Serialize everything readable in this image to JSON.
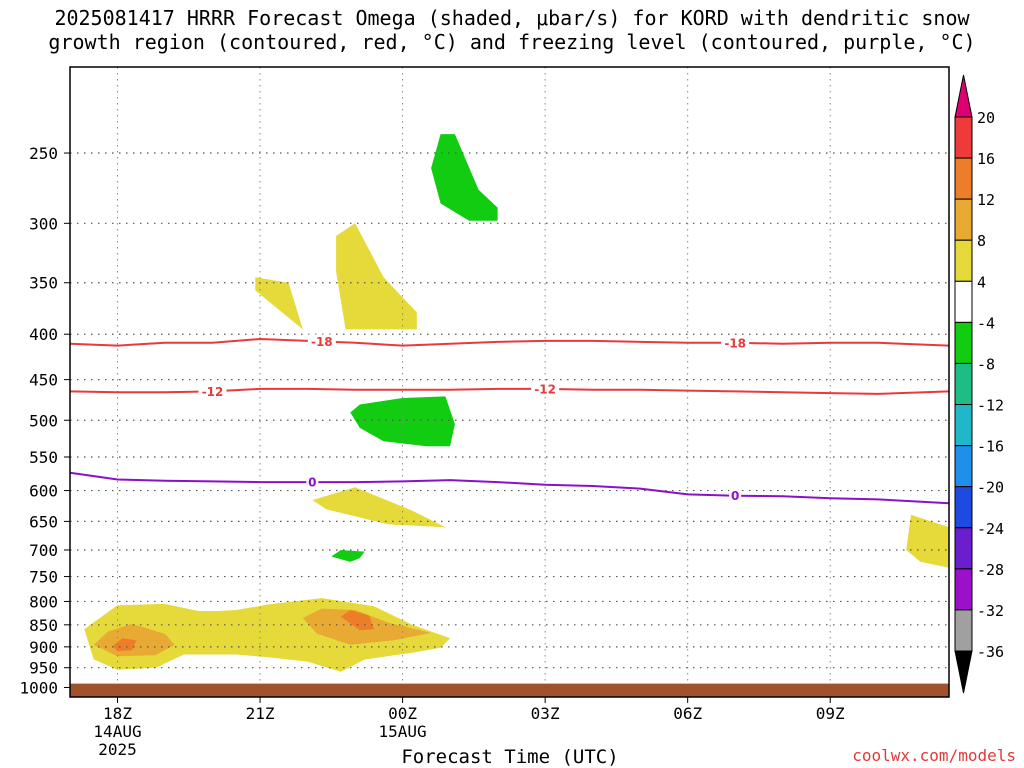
{
  "title_lines": [
    "2025081417 HRRR Forecast Omega (shaded, μbar/s) for KORD with dendritic snow",
    "growth region (contoured, red, °C) and freezing level (contoured, purple, °C)"
  ],
  "credit": "coolwx.com/models",
  "chart_data": {
    "type": "contour",
    "title": "2025081417 HRRR Forecast Omega (shaded, μbar/s) for KORD with dendritic snow growth region (contoured, red, °C) and freezing level (contoured, purple, °C)",
    "xlabel": "Forecast Time (UTC)",
    "ylabel": "",
    "y_scale": "log-pressure (hPa), inverted",
    "ylim": [
      1025,
      200
    ],
    "y_ticks": [
      250,
      300,
      350,
      400,
      450,
      500,
      550,
      600,
      650,
      700,
      750,
      800,
      850,
      900,
      950,
      1000
    ],
    "xlim": [
      17,
      35.5
    ],
    "x_ticks": [
      {
        "hour": 18,
        "label": "18Z",
        "sub1": "14AUG",
        "sub2": "2025"
      },
      {
        "hour": 21,
        "label": "21Z",
        "sub1": "",
        "sub2": ""
      },
      {
        "hour": 24,
        "label": "00Z",
        "sub1": "15AUG",
        "sub2": ""
      },
      {
        "hour": 27,
        "label": "03Z",
        "sub1": "",
        "sub2": ""
      },
      {
        "hour": 30,
        "label": "06Z",
        "sub1": "",
        "sub2": ""
      },
      {
        "hour": 33,
        "label": "09Z",
        "sub1": "",
        "sub2": ""
      }
    ],
    "grid": true,
    "ground_below_hpa": 990,
    "colorbar": {
      "placement": "right",
      "labels": [
        "20",
        "16",
        "12",
        "8",
        "4",
        "-4",
        "-8",
        "-12",
        "-16",
        "-20",
        "-24",
        "-28",
        "-32",
        "-36"
      ],
      "colors": [
        "#dd0070",
        "#ee3a3a",
        "#ee7d2a",
        "#e8aa33",
        "#e6d93a",
        "#ffffff",
        "#11cc11",
        "#1dbd85",
        "#1eb8c8",
        "#1e8fea",
        "#1d4ae0",
        "#6a1ecd",
        "#9b10c8",
        "#a0a0a0",
        "#000000"
      ]
    },
    "contours": [
      {
        "kind": "dendritic",
        "label": "-18",
        "color": "#e83a3a",
        "x": [
          17,
          18,
          19,
          20,
          21,
          22,
          23,
          24,
          25,
          26,
          27,
          28,
          29,
          30,
          31,
          32,
          33,
          34,
          35.5
        ],
        "y": [
          410,
          412,
          409,
          409,
          405,
          407,
          409,
          412,
          410,
          408,
          407,
          407,
          408,
          409,
          409,
          410,
          409,
          409,
          412
        ],
        "label_positions": [
          22.3,
          31
        ]
      },
      {
        "kind": "dendritic",
        "label": "-12",
        "color": "#e83a3a",
        "x": [
          17,
          18,
          19,
          20,
          21,
          22,
          23,
          24,
          25,
          26,
          27,
          28,
          29,
          30,
          31,
          32,
          33,
          34,
          35.5
        ],
        "y": [
          464,
          465,
          465,
          464,
          461,
          461,
          462,
          462,
          462,
          461,
          461,
          462,
          462,
          463,
          464,
          465,
          466,
          467,
          464
        ],
        "label_positions": [
          20,
          27
        ]
      },
      {
        "kind": "freezing",
        "label": "0",
        "color": "#8c10c8",
        "x": [
          17,
          18,
          19,
          20,
          21,
          22,
          23,
          24,
          25,
          26,
          27,
          28,
          29,
          30,
          31,
          32,
          33,
          34,
          35.5
        ],
        "y": [
          573,
          583,
          585,
          586,
          587,
          587,
          587,
          586,
          584,
          587,
          591,
          593,
          597,
          606,
          608,
          609,
          612,
          614,
          620
        ],
        "label_positions": [
          22.1,
          31
        ]
      }
    ],
    "shaded_regions": [
      {
        "level": "4 to 8",
        "color": "#e6d93a",
        "points": [
          [
            20.9,
            345
          ],
          [
            21.6,
            350
          ],
          [
            21.9,
            395
          ],
          [
            20.9,
            357
          ]
        ]
      },
      {
        "level": "4 to 8",
        "color": "#e6d93a",
        "points": [
          [
            22.6,
            310
          ],
          [
            23,
            300
          ],
          [
            23.6,
            345
          ],
          [
            24.3,
            378
          ],
          [
            24.3,
            395
          ],
          [
            22.8,
            395
          ],
          [
            22.6,
            340
          ]
        ]
      },
      {
        "level": "4 to 8",
        "color": "#e6d93a",
        "points": [
          [
            22.1,
            615
          ],
          [
            23,
            595
          ],
          [
            24.2,
            632
          ],
          [
            24.9,
            660
          ],
          [
            23.7,
            655
          ],
          [
            22.4,
            630
          ]
        ]
      },
      {
        "level": "4 to 8",
        "color": "#e6d93a",
        "points": [
          [
            34.7,
            639
          ],
          [
            35.5,
            660
          ],
          [
            35.5,
            733
          ],
          [
            34.9,
            722
          ],
          [
            34.6,
            700
          ]
        ]
      },
      {
        "level": "4 to 8",
        "color": "#e6d93a",
        "points": [
          [
            17.3,
            860
          ],
          [
            18,
            808
          ],
          [
            19,
            805
          ],
          [
            19.7,
            820
          ],
          [
            20.1,
            820
          ],
          [
            20.5,
            818
          ],
          [
            21.2,
            806
          ],
          [
            22.3,
            793
          ],
          [
            23.4,
            810
          ],
          [
            24.2,
            850
          ],
          [
            25,
            880
          ],
          [
            24.8,
            902
          ],
          [
            24.2,
            914
          ],
          [
            23.2,
            930
          ],
          [
            22.7,
            960
          ],
          [
            22,
            935
          ],
          [
            21.2,
            925
          ],
          [
            20.5,
            918
          ],
          [
            19.4,
            918
          ],
          [
            18.8,
            950
          ],
          [
            18,
            955
          ],
          [
            17.5,
            930
          ]
        ]
      },
      {
        "level": "8 to 12",
        "color": "#e8aa33",
        "points": [
          [
            17.5,
            895
          ],
          [
            17.8,
            865
          ],
          [
            18.3,
            848
          ],
          [
            19,
            870
          ],
          [
            19.2,
            895
          ],
          [
            18.8,
            920
          ],
          [
            18,
            922
          ]
        ]
      },
      {
        "level": "8 to 12",
        "color": "#e8aa33",
        "points": [
          [
            21.9,
            835
          ],
          [
            22.3,
            815
          ],
          [
            23,
            818
          ],
          [
            23.7,
            845
          ],
          [
            24.6,
            868
          ],
          [
            23.8,
            885
          ],
          [
            22.9,
            895
          ],
          [
            22.2,
            870
          ]
        ]
      },
      {
        "level": "12 to 16",
        "color": "#ee7d2a",
        "points": [
          [
            17.9,
            898
          ],
          [
            18.1,
            880
          ],
          [
            18.4,
            885
          ],
          [
            18.3,
            908
          ],
          [
            18,
            910
          ]
        ]
      },
      {
        "level": "12 to 16",
        "color": "#ee7d2a",
        "points": [
          [
            22.7,
            832
          ],
          [
            22.9,
            818
          ],
          [
            23.3,
            830
          ],
          [
            23.4,
            860
          ],
          [
            23.1,
            862
          ]
        ]
      },
      {
        "level": "-4 to -8",
        "color": "#11cc11",
        "points": [
          [
            24.8,
            238
          ],
          [
            25.1,
            238
          ],
          [
            25.6,
            275
          ],
          [
            26,
            288
          ],
          [
            26,
            298
          ],
          [
            25.4,
            298
          ],
          [
            24.8,
            285
          ],
          [
            24.6,
            260
          ]
        ]
      },
      {
        "level": "-4 to -8",
        "color": "#11cc11",
        "points": [
          [
            23.1,
            480
          ],
          [
            24,
            472
          ],
          [
            24.9,
            470
          ],
          [
            25.1,
            505
          ],
          [
            25,
            535
          ],
          [
            24.5,
            535
          ],
          [
            23.6,
            528
          ],
          [
            23.1,
            510
          ],
          [
            22.9,
            490
          ]
        ]
      },
      {
        "level": "-4 to -8",
        "color": "#11cc11",
        "points": [
          [
            22.5,
            712
          ],
          [
            22.7,
            700
          ],
          [
            23.2,
            703
          ],
          [
            23.1,
            715
          ],
          [
            22.9,
            722
          ]
        ]
      }
    ]
  }
}
